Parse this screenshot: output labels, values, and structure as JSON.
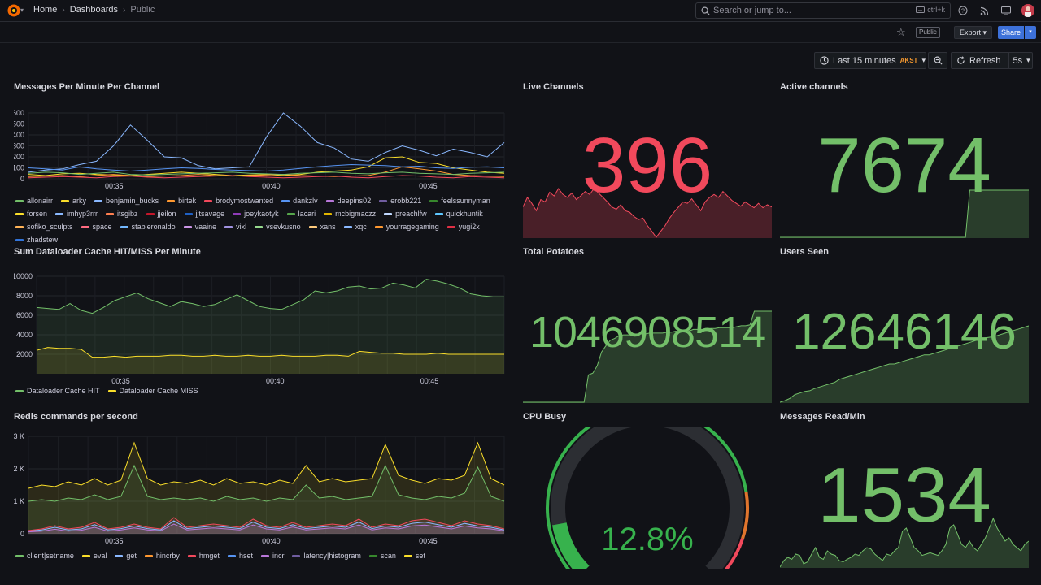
{
  "header": {
    "breadcrumbs": [
      "Home",
      "Dashboards",
      "Public"
    ],
    "search_placeholder": "Search or jump to...",
    "search_shortcut": "ctrl+k",
    "icons": [
      "help-icon",
      "rss-icon",
      "kiosk-icon",
      "avatar"
    ]
  },
  "toolbar": {
    "public_badge": "Public",
    "export_label": "Export",
    "share_label": "Share"
  },
  "timepicker": {
    "range": "Last 15 minutes",
    "timezone": "AKST",
    "refresh_label": "Refresh",
    "interval": "5s"
  },
  "colors": {
    "green": "#73bf69",
    "red": "#f2495c",
    "yellow": "#fade2a",
    "bg": "#111217"
  },
  "panels": {
    "messages": {
      "title": "Messages Per Minute Per Channel",
      "legend": [
        {
          "name": "allonairr",
          "color": "#73bf69"
        },
        {
          "name": "arky",
          "color": "#fade2a"
        },
        {
          "name": "benjamin_bucks",
          "color": "#8ab8ff"
        },
        {
          "name": "birtek",
          "color": "#ff9830"
        },
        {
          "name": "brodymostwanted",
          "color": "#f2495c"
        },
        {
          "name": "dankzlv",
          "color": "#5794f2"
        },
        {
          "name": "deepins02",
          "color": "#b877d9"
        },
        {
          "name": "erobb221",
          "color": "#705da0"
        },
        {
          "name": "feelssunnyman",
          "color": "#37872d"
        },
        {
          "name": "forsen",
          "color": "#fade2a"
        },
        {
          "name": "imhyp3rrr",
          "color": "#8ab8ff"
        },
        {
          "name": "itsgibz",
          "color": "#ff7f50"
        },
        {
          "name": "jjeilon",
          "color": "#c4162a"
        },
        {
          "name": "jjtsavage",
          "color": "#1f60c4"
        },
        {
          "name": "joeykaotyk",
          "color": "#8f3bb8"
        },
        {
          "name": "lacari",
          "color": "#56a64b"
        },
        {
          "name": "mcbigmaczz",
          "color": "#e0b400"
        },
        {
          "name": "preachlfw",
          "color": "#c0d8ff"
        },
        {
          "name": "quickhuntik",
          "color": "#5ec7ff"
        },
        {
          "name": "sofiko_sculpts",
          "color": "#ffb357"
        },
        {
          "name": "space",
          "color": "#ff6b81"
        },
        {
          "name": "stableronaldo",
          "color": "#73b8ff"
        },
        {
          "name": "vaaine",
          "color": "#ca95e5"
        },
        {
          "name": "vixl",
          "color": "#a092e0"
        },
        {
          "name": "vsevkusno",
          "color": "#96d98d"
        },
        {
          "name": "xans",
          "color": "#ffcb7d"
        },
        {
          "name": "xqc",
          "color": "#8ab8ff"
        },
        {
          "name": "yourragegaming",
          "color": "#ff9830"
        },
        {
          "name": "yugi2x",
          "color": "#e02f44"
        },
        {
          "name": "zhadstew",
          "color": "#3274d9"
        }
      ]
    },
    "dataloader": {
      "title": "Sum Dataloader Cache HIT/MISS Per Minute",
      "legend": [
        {
          "name": "Dataloader Cache HIT",
          "color": "#73bf69"
        },
        {
          "name": "Dataloader Cache MISS",
          "color": "#fade2a"
        }
      ]
    },
    "redis": {
      "title": "Redis commands per second",
      "legend": [
        {
          "name": "client|setname",
          "color": "#73bf69"
        },
        {
          "name": "eval",
          "color": "#fade2a"
        },
        {
          "name": "get",
          "color": "#8ab8ff"
        },
        {
          "name": "hincrby",
          "color": "#ff9830"
        },
        {
          "name": "hmget",
          "color": "#f2495c"
        },
        {
          "name": "hset",
          "color": "#5794f2"
        },
        {
          "name": "incr",
          "color": "#b877d9"
        },
        {
          "name": "latency|histogram",
          "color": "#705da0"
        },
        {
          "name": "scan",
          "color": "#37872d"
        },
        {
          "name": "set",
          "color": "#fade2a"
        }
      ]
    },
    "live_channels": {
      "title": "Live Channels",
      "value": "396"
    },
    "active_channels": {
      "title": "Active channels",
      "value": "7674"
    },
    "total_potatoes": {
      "title": "Total Potatoes",
      "value": "1046908514"
    },
    "users_seen": {
      "title": "Users Seen",
      "value": "12646146"
    },
    "cpu_busy": {
      "title": "CPU Busy",
      "value": "12.8%",
      "percent": 12.8
    },
    "messages_read": {
      "title": "Messages Read/Min",
      "value": "1534"
    }
  },
  "chart_data": [
    {
      "type": "line",
      "title": "Messages Per Minute Per Channel",
      "x_ticks": [
        "00:35",
        "00:40",
        "00:45"
      ],
      "ylim": [
        0,
        600
      ],
      "y_ticks": [
        "0",
        "100",
        "200",
        "300",
        "400",
        "500",
        "600"
      ],
      "series": [
        {
          "name": "dankzlv",
          "color": "#8ab8ff",
          "values": [
            60,
            80,
            90,
            130,
            160,
            300,
            490,
            350,
            200,
            190,
            120,
            90,
            100,
            110,
            380,
            600,
            480,
            330,
            280,
            180,
            160,
            240,
            300,
            260,
            210,
            270,
            240,
            200,
            330
          ]
        },
        {
          "name": "forsen",
          "color": "#fade2a",
          "values": [
            40,
            30,
            45,
            50,
            40,
            35,
            30,
            40,
            50,
            60,
            50,
            40,
            30,
            35,
            40,
            30,
            40,
            60,
            70,
            80,
            110,
            190,
            200,
            150,
            140,
            100,
            80,
            60,
            50
          ]
        },
        {
          "name": "xqc",
          "color": "#5794f2",
          "values": [
            100,
            90,
            80,
            110,
            90,
            80,
            70,
            80,
            90,
            100,
            95,
            85,
            80,
            75,
            70,
            80,
            95,
            110,
            120,
            130,
            125,
            120,
            110,
            115,
            100,
            95,
            105,
            110,
            100
          ]
        },
        {
          "name": "birtek",
          "color": "#ff9830",
          "values": [
            20,
            25,
            30,
            20,
            30,
            40,
            30,
            20,
            25,
            30,
            40,
            30,
            25,
            30,
            35,
            40,
            30,
            25,
            20,
            25,
            30,
            60,
            110,
            90,
            70,
            40,
            30,
            25,
            20
          ]
        },
        {
          "name": "allonairr",
          "color": "#73bf69",
          "values": [
            50,
            60,
            55,
            40,
            50,
            60,
            40,
            35,
            40,
            45,
            50,
            55,
            60,
            50,
            45,
            40,
            50,
            55,
            60,
            50,
            45,
            55,
            60,
            50,
            45,
            40,
            50,
            55,
            60
          ]
        },
        {
          "name": "brodymostwanted",
          "color": "#f2495c",
          "values": [
            10,
            15,
            20,
            15,
            10,
            20,
            25,
            15,
            10,
            15,
            20,
            25,
            30,
            20,
            15,
            10,
            15,
            20,
            25,
            15,
            10,
            20,
            30,
            25,
            15,
            10,
            20,
            15,
            10
          ]
        }
      ]
    },
    {
      "type": "area",
      "title": "Sum Dataloader Cache HIT/MISS Per Minute",
      "x_ticks": [
        "00:35",
        "00:40",
        "00:45"
      ],
      "ylim": [
        0,
        10000
      ],
      "y_ticks": [
        "2000",
        "4000",
        "6000",
        "8000",
        "10000"
      ],
      "series": [
        {
          "name": "Dataloader Cache HIT",
          "color": "#73bf69",
          "values": [
            6800,
            6700,
            6600,
            7200,
            6500,
            6200,
            6800,
            7500,
            7900,
            8300,
            7700,
            7300,
            6900,
            7400,
            7200,
            6900,
            7100,
            7600,
            8100,
            7500,
            6900,
            6700,
            6600,
            7100,
            7600,
            8500,
            8300,
            8500,
            8900,
            9000,
            8700,
            8800,
            9300,
            9100,
            8800,
            9700,
            9500,
            9200,
            8800,
            8200,
            8000,
            7900,
            7900
          ]
        },
        {
          "name": "Dataloader Cache MISS",
          "color": "#fade2a",
          "values": [
            2400,
            2700,
            2600,
            2600,
            2500,
            1700,
            1700,
            1800,
            1700,
            1800,
            1800,
            1800,
            1900,
            1900,
            1800,
            1800,
            1900,
            1800,
            1800,
            1900,
            1800,
            1800,
            1900,
            1800,
            1800,
            1800,
            1900,
            1900,
            1800,
            2300,
            2200,
            2100,
            2100,
            2000,
            2000,
            2000,
            2100,
            2000,
            2000,
            2000,
            2000,
            2000,
            2000
          ]
        }
      ]
    },
    {
      "type": "area",
      "title": "Redis commands per second",
      "x_ticks": [
        "00:35",
        "00:40",
        "00:45"
      ],
      "ylim": [
        0,
        3000
      ],
      "y_ticks": [
        "0",
        "1 K",
        "2 K",
        "3 K"
      ],
      "series": [
        {
          "name": "eval",
          "color": "#fade2a",
          "values": [
            1400,
            1500,
            1450,
            1600,
            1500,
            1700,
            1500,
            1650,
            2800,
            1700,
            1500,
            1600,
            1550,
            1650,
            1500,
            1700,
            1550,
            1600,
            1500,
            1650,
            1550,
            2100,
            1600,
            1700,
            1600,
            1650,
            1700,
            2750,
            1800,
            1650,
            1550,
            1700,
            1650,
            1800,
            2800,
            1700,
            1500
          ]
        },
        {
          "name": "client|setname",
          "color": "#73bf69",
          "values": [
            1000,
            1050,
            1000,
            1100,
            1050,
            1200,
            1050,
            1150,
            2100,
            1150,
            1050,
            1100,
            1050,
            1100,
            1000,
            1150,
            1050,
            1100,
            1000,
            1100,
            1050,
            1500,
            1100,
            1150,
            1050,
            1100,
            1150,
            2100,
            1200,
            1100,
            1050,
            1150,
            1100,
            1250,
            2050,
            1150,
            1000
          ]
        },
        {
          "name": "hmget",
          "color": "#f2495c",
          "values": [
            100,
            150,
            250,
            150,
            200,
            350,
            150,
            200,
            300,
            200,
            150,
            500,
            200,
            250,
            300,
            250,
            200,
            450,
            250,
            200,
            350,
            200,
            250,
            300,
            250,
            450,
            200,
            300,
            250,
            400,
            450,
            350,
            250,
            400,
            300,
            250,
            150
          ]
        },
        {
          "name": "get",
          "color": "#8ab8ff",
          "values": [
            80,
            120,
            200,
            120,
            150,
            280,
            120,
            160,
            240,
            160,
            120,
            400,
            160,
            200,
            240,
            200,
            160,
            360,
            200,
            160,
            280,
            160,
            200,
            240,
            200,
            360,
            160,
            240,
            200,
            320,
            360,
            280,
            200,
            320,
            240,
            200,
            120
          ]
        },
        {
          "name": "incr",
          "color": "#b877d9",
          "values": [
            60,
            80,
            140,
            80,
            110,
            200,
            80,
            120,
            180,
            120,
            90,
            300,
            120,
            150,
            180,
            150,
            120,
            270,
            150,
            120,
            210,
            120,
            150,
            180,
            150,
            270,
            120,
            180,
            150,
            240,
            270,
            210,
            150,
            240,
            180,
            150,
            90
          ]
        }
      ]
    },
    {
      "type": "area",
      "title": "Live Channels",
      "color": "#f2495c",
      "values": [
        45,
        58,
        50,
        40,
        55,
        52,
        65,
        60,
        70,
        62,
        58,
        64,
        55,
        60,
        66,
        62,
        70,
        64,
        58,
        52,
        45,
        42,
        48,
        40,
        38,
        32,
        28,
        30,
        20,
        12,
        4,
        12,
        20,
        30,
        38,
        45,
        52,
        50,
        56,
        48,
        40,
        52,
        58,
        62,
        58,
        66,
        60,
        54,
        50,
        46,
        52,
        48,
        44,
        50,
        44,
        48,
        45
      ]
    },
    {
      "type": "area",
      "title": "Active channels",
      "color": "#73bf69",
      "values": [
        0,
        0,
        0,
        0,
        0,
        0,
        0,
        0,
        0,
        0,
        0,
        0,
        0,
        0,
        0,
        0,
        0,
        0,
        0,
        0,
        0,
        0,
        0,
        0,
        0,
        0,
        0,
        0,
        0,
        0,
        0,
        0,
        0,
        0,
        0,
        0,
        0,
        0,
        0,
        0,
        0,
        0,
        0,
        0,
        0,
        1,
        1,
        1,
        1,
        1,
        1,
        1,
        1,
        1,
        1,
        1,
        1,
        1,
        1,
        1
      ]
    },
    {
      "type": "area",
      "title": "Total Potatoes",
      "color": "#73bf69",
      "values": [
        0,
        0,
        0,
        0,
        0,
        0,
        0,
        0,
        0,
        0,
        0,
        0,
        0,
        0,
        0,
        30,
        32,
        40,
        55,
        62,
        68,
        70,
        73,
        74,
        74,
        74,
        74,
        75,
        75,
        76,
        76,
        76,
        76,
        77,
        77,
        78,
        78,
        78,
        78,
        80,
        80,
        80,
        80,
        81,
        81,
        82,
        82,
        82,
        82,
        83,
        84,
        84,
        85,
        100,
        100,
        100,
        100,
        100
      ]
    },
    {
      "type": "area",
      "title": "Users Seen",
      "color": "#73bf69",
      "values": [
        0,
        2,
        5,
        10,
        12,
        14,
        15,
        18,
        20,
        22,
        24,
        26,
        30,
        32,
        34,
        36,
        38,
        40,
        42,
        44,
        46,
        48,
        50,
        50,
        52,
        54,
        56,
        58,
        60,
        62,
        62,
        64,
        66,
        68,
        70,
        72,
        74,
        76,
        78,
        80,
        82,
        84,
        85,
        86,
        88,
        90,
        92,
        94,
        96,
        98,
        100
      ]
    },
    {
      "type": "area",
      "title": "Messages Read/Min",
      "color": "#73bf69",
      "values": [
        10,
        20,
        25,
        22,
        30,
        28,
        15,
        18,
        30,
        40,
        25,
        22,
        35,
        30,
        28,
        20,
        18,
        22,
        25,
        30,
        28,
        35,
        40,
        38,
        30,
        25,
        20,
        30,
        28,
        35,
        40,
        65,
        70,
        55,
        40,
        35,
        28,
        30,
        32,
        30,
        28,
        35,
        45,
        70,
        75,
        60,
        45,
        40,
        50,
        40,
        35,
        45,
        55,
        70,
        85,
        70,
        60,
        50,
        55,
        45,
        40,
        35,
        45,
        50
      ]
    }
  ]
}
